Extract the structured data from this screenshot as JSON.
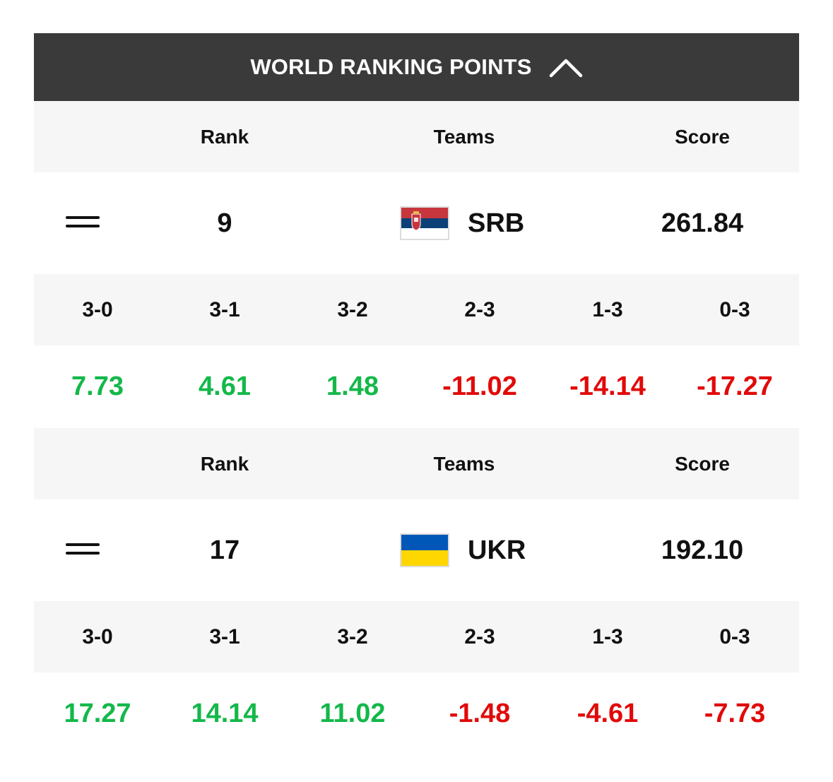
{
  "header": {
    "title": "WORLD RANKING POINTS",
    "toggle_icon": "chevron-up-icon"
  },
  "columns": {
    "rank": "Rank",
    "teams": "Teams",
    "score": "Score"
  },
  "set_results": [
    "3-0",
    "3-1",
    "3-2",
    "2-3",
    "1-3",
    "0-3"
  ],
  "teams": [
    {
      "trend_icon": "equals-icon",
      "rank": "9",
      "flag_icon": "serbia-flag-icon",
      "code": "SRB",
      "score": "261.84",
      "points": [
        "7.73",
        "4.61",
        "1.48",
        "-11.02",
        "-14.14",
        "-17.27"
      ]
    },
    {
      "trend_icon": "equals-icon",
      "rank": "17",
      "flag_icon": "ukraine-flag-icon",
      "code": "UKR",
      "score": "192.10",
      "points": [
        "17.27",
        "14.14",
        "11.02",
        "-1.48",
        "-4.61",
        "-7.73"
      ]
    }
  ],
  "colors": {
    "header_bg": "#3a3a3a",
    "row_alt_bg": "#f6f6f6",
    "positive": "#14b84a",
    "negative": "#e10a0a"
  }
}
